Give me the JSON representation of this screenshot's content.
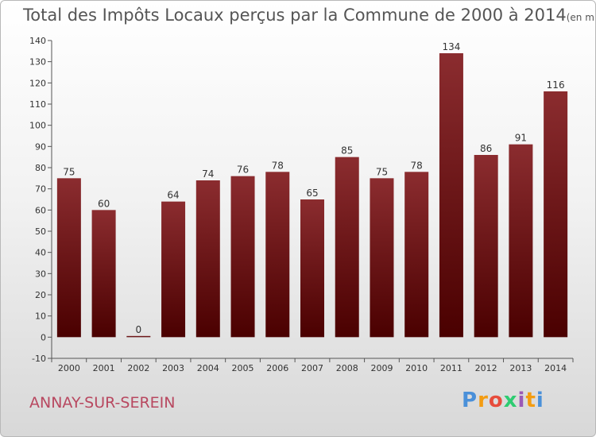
{
  "title": "Total des Impôts Locaux perçus par la Commune de 2000 à 2014",
  "title_unit": "(en milliers d'€)",
  "commune": "ANNAY-SUR-SEREIN",
  "logo": {
    "text": "Proxiti",
    "letters": [
      "P",
      "r",
      "o",
      "x",
      "i",
      "t",
      "i"
    ]
  },
  "colors": {
    "bar_top": "#8b2c2f",
    "bar_bottom": "#4a0000",
    "commune": "#b84860",
    "logo": [
      "#4a90d9",
      "#f39c12",
      "#e74c3c",
      "#2ecc71",
      "#9b59b6",
      "#f39c12",
      "#4a90d9"
    ]
  },
  "chart_data": {
    "type": "bar",
    "title": "Total des Impôts Locaux perçus par la Commune de 2000 à 2014",
    "categories": [
      "2000",
      "2001",
      "2002",
      "2003",
      "2004",
      "2005",
      "2006",
      "2007",
      "2008",
      "2009",
      "2010",
      "2011",
      "2012",
      "2013",
      "2014"
    ],
    "values": [
      75,
      60,
      0,
      64,
      74,
      76,
      78,
      65,
      85,
      75,
      78,
      134,
      86,
      91,
      116
    ],
    "xlabel": "",
    "ylabel": "",
    "ylim": [
      -10,
      140
    ],
    "yticks": [
      -10,
      0,
      10,
      20,
      30,
      40,
      50,
      60,
      70,
      80,
      90,
      100,
      110,
      120,
      130,
      140
    ],
    "grid": false,
    "legend": "none"
  }
}
